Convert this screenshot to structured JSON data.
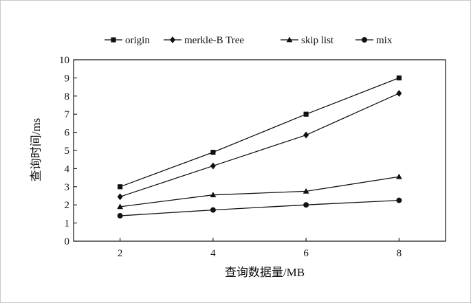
{
  "chart_data": {
    "type": "line",
    "x": [
      2,
      4,
      6,
      8
    ],
    "series": [
      {
        "name": "origin",
        "marker": "square",
        "values": [
          3.0,
          4.9,
          7.0,
          9.0
        ]
      },
      {
        "name": "merkle-B Tree",
        "marker": "diamond",
        "values": [
          2.45,
          4.15,
          5.85,
          8.15
        ]
      },
      {
        "name": "skip list",
        "marker": "triangle",
        "values": [
          1.9,
          2.55,
          2.75,
          3.55
        ]
      },
      {
        "name": "mix",
        "marker": "circle",
        "values": [
          1.4,
          1.72,
          2.0,
          2.25
        ]
      }
    ],
    "xlabel": "查询数据量/MB",
    "ylabel": "查询时间/ms",
    "xticks": [
      "2",
      "4",
      "6",
      "8"
    ],
    "yticks": [
      "0",
      "1",
      "2",
      "3",
      "4",
      "5",
      "6",
      "7",
      "8",
      "9",
      "10"
    ],
    "xlim": [
      1,
      9
    ],
    "ylim": [
      0,
      10
    ],
    "grid": false,
    "legend_position": "top-center",
    "line_color": "#111111"
  }
}
